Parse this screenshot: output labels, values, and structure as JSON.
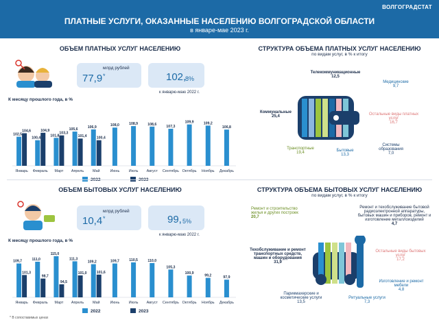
{
  "header": {
    "brand": "ВОЛГОГРАДСТАТ",
    "title": "ПЛАТНЫЕ УСЛУГИ, ОКАЗАННЫЕ НАСЕЛЕНИЮ ВОЛГОГРАДСКОЙ ОБЛАСТИ",
    "subtitle": "в январе-мае 2023 г."
  },
  "colors": {
    "header": "#1c6aa6",
    "y2022": "#2a8fcf",
    "y2023": "#1b3f6b",
    "kpi_bg": "#dbe8f6"
  },
  "paid": {
    "title": "ОБЪЕМ ПЛАТНЫХ УСЛУГ НАСЕЛЕНИЮ",
    "volume": "77,9",
    "volume_star": "*",
    "volume_unit": "млрд рублей",
    "index_main": "102,",
    "index_dec": "8%",
    "index_note": "к январю-маю 2022 г.",
    "chart_label": "К месяцу прошлого года, в %"
  },
  "household": {
    "title": "ОБЪЕМ БЫТОВЫХ УСЛУГ НАСЕЛЕНИЮ",
    "volume": "10,4",
    "volume_star": "*",
    "volume_unit": "млрд рублей",
    "index_main": "99,",
    "index_dec": "5%",
    "index_note": "к январю-маю 2022 г.",
    "chart_label": "К месяцу прошлого года, в %"
  },
  "structure_paid": {
    "title": "СТРУКТУРА ОБЪЕМА ПЛАТНЫХ УСЛУГ НАСЕЛЕНИЮ",
    "subtitle": "по видам услуг, в % к итогу",
    "items": [
      {
        "name": "Телекоммуникационные",
        "value": "12,5"
      },
      {
        "name": "Медицинские",
        "value": "9,7"
      },
      {
        "name": "Коммунальные",
        "value": "25,4"
      },
      {
        "name": "Остальные виды платных услуг",
        "value": "16,7"
      },
      {
        "name": "Транспортные",
        "value": "19,4"
      },
      {
        "name": "Бытовые",
        "value": "13,3"
      },
      {
        "name": "Системы образования",
        "value": "7,0"
      }
    ]
  },
  "structure_household": {
    "title": "СТРУКТУРА ОБЪЕМА БЫТОВЫХ УСЛУГ НАСЕЛЕНИЮ",
    "subtitle": "по видам услуг, в % к итогу",
    "items": [
      {
        "name": "Ремонт и строительство жилья и других построек",
        "value": "20,7"
      },
      {
        "name": "Ремонт и техобслуживание бытовой радиоэлектронной аппаратуры, бытовых машин и приборов, ремонт и изготовление металлоизделий",
        "value": "4,7"
      },
      {
        "name": "Техобслуживание и ремонт транспортных средств, машин и оборудования",
        "value": "31,9"
      },
      {
        "name": "Остальные виды бытовых услуг",
        "value": "17,2"
      },
      {
        "name": "Изготовление и ремонт мебели",
        "value": "4,8"
      },
      {
        "name": "Парикмахерские и косметические услуги",
        "value": "13,5"
      },
      {
        "name": "Ритуальные услуги",
        "value": "7,3"
      }
    ]
  },
  "footnote": "* В сопоставимых ценах",
  "chart_data": [
    {
      "type": "bar",
      "title": "К месяцу прошлого года, в %",
      "categories": [
        "Январь",
        "Февраль",
        "Март",
        "Апрель",
        "Май",
        "Июнь",
        "Июль",
        "Август",
        "Сентябрь",
        "Октябрь",
        "Ноябрь",
        "Декабрь"
      ],
      "series": [
        {
          "name": "2022",
          "values": [
            102.5,
            100.4,
            101.8,
            105.6,
            106.9,
            108.0,
            108.9,
            108.6,
            107.3,
            109.9,
            109.2,
            106.8
          ]
        },
        {
          "name": "2023",
          "values": [
            104.6,
            104.9,
            103.3,
            101.4,
            100.4,
            null,
            null,
            null,
            null,
            null,
            null,
            null
          ]
        }
      ],
      "labels_2022": [
        "102,5",
        "100,4",
        "101,8",
        "105,6",
        "106,9",
        "108,0",
        "108,9",
        "108,6",
        "107,3",
        "109,9",
        "109,2",
        "106,8"
      ],
      "labels_2023": [
        "104,6",
        "104,9",
        "103,3",
        "101,4",
        "100,4"
      ],
      "legend": "bottom"
    },
    {
      "type": "bar",
      "title": "К месяцу прошлого года, в %",
      "categories": [
        "Январь",
        "Февраль",
        "Март",
        "Апрель",
        "Май",
        "Июнь",
        "Июль",
        "Август",
        "Сентябрь",
        "Октябрь",
        "Ноябрь",
        "Декабрь"
      ],
      "series": [
        {
          "name": "2022",
          "values": [
            109.7,
            111.0,
            115.0,
            111.3,
            109.2,
            109.7,
            110.5,
            110.0,
            105.3,
            100.9,
            99.2,
            97.9
          ]
        },
        {
          "name": "2023",
          "values": [
            101.3,
            98.7,
            94.5,
            101.0,
            101.6,
            null,
            null,
            null,
            null,
            null,
            null,
            null
          ]
        }
      ],
      "labels_2022": [
        "109,7",
        "111,0",
        "115,0",
        "111,3",
        "109,2",
        "109,7",
        "110,5",
        "110,0",
        "105,3",
        "100,9",
        "99,2",
        "97,9"
      ],
      "labels_2023": [
        "101,3",
        "98,7",
        "94,5",
        "101,0",
        "101,6"
      ],
      "legend": "bottom"
    }
  ]
}
